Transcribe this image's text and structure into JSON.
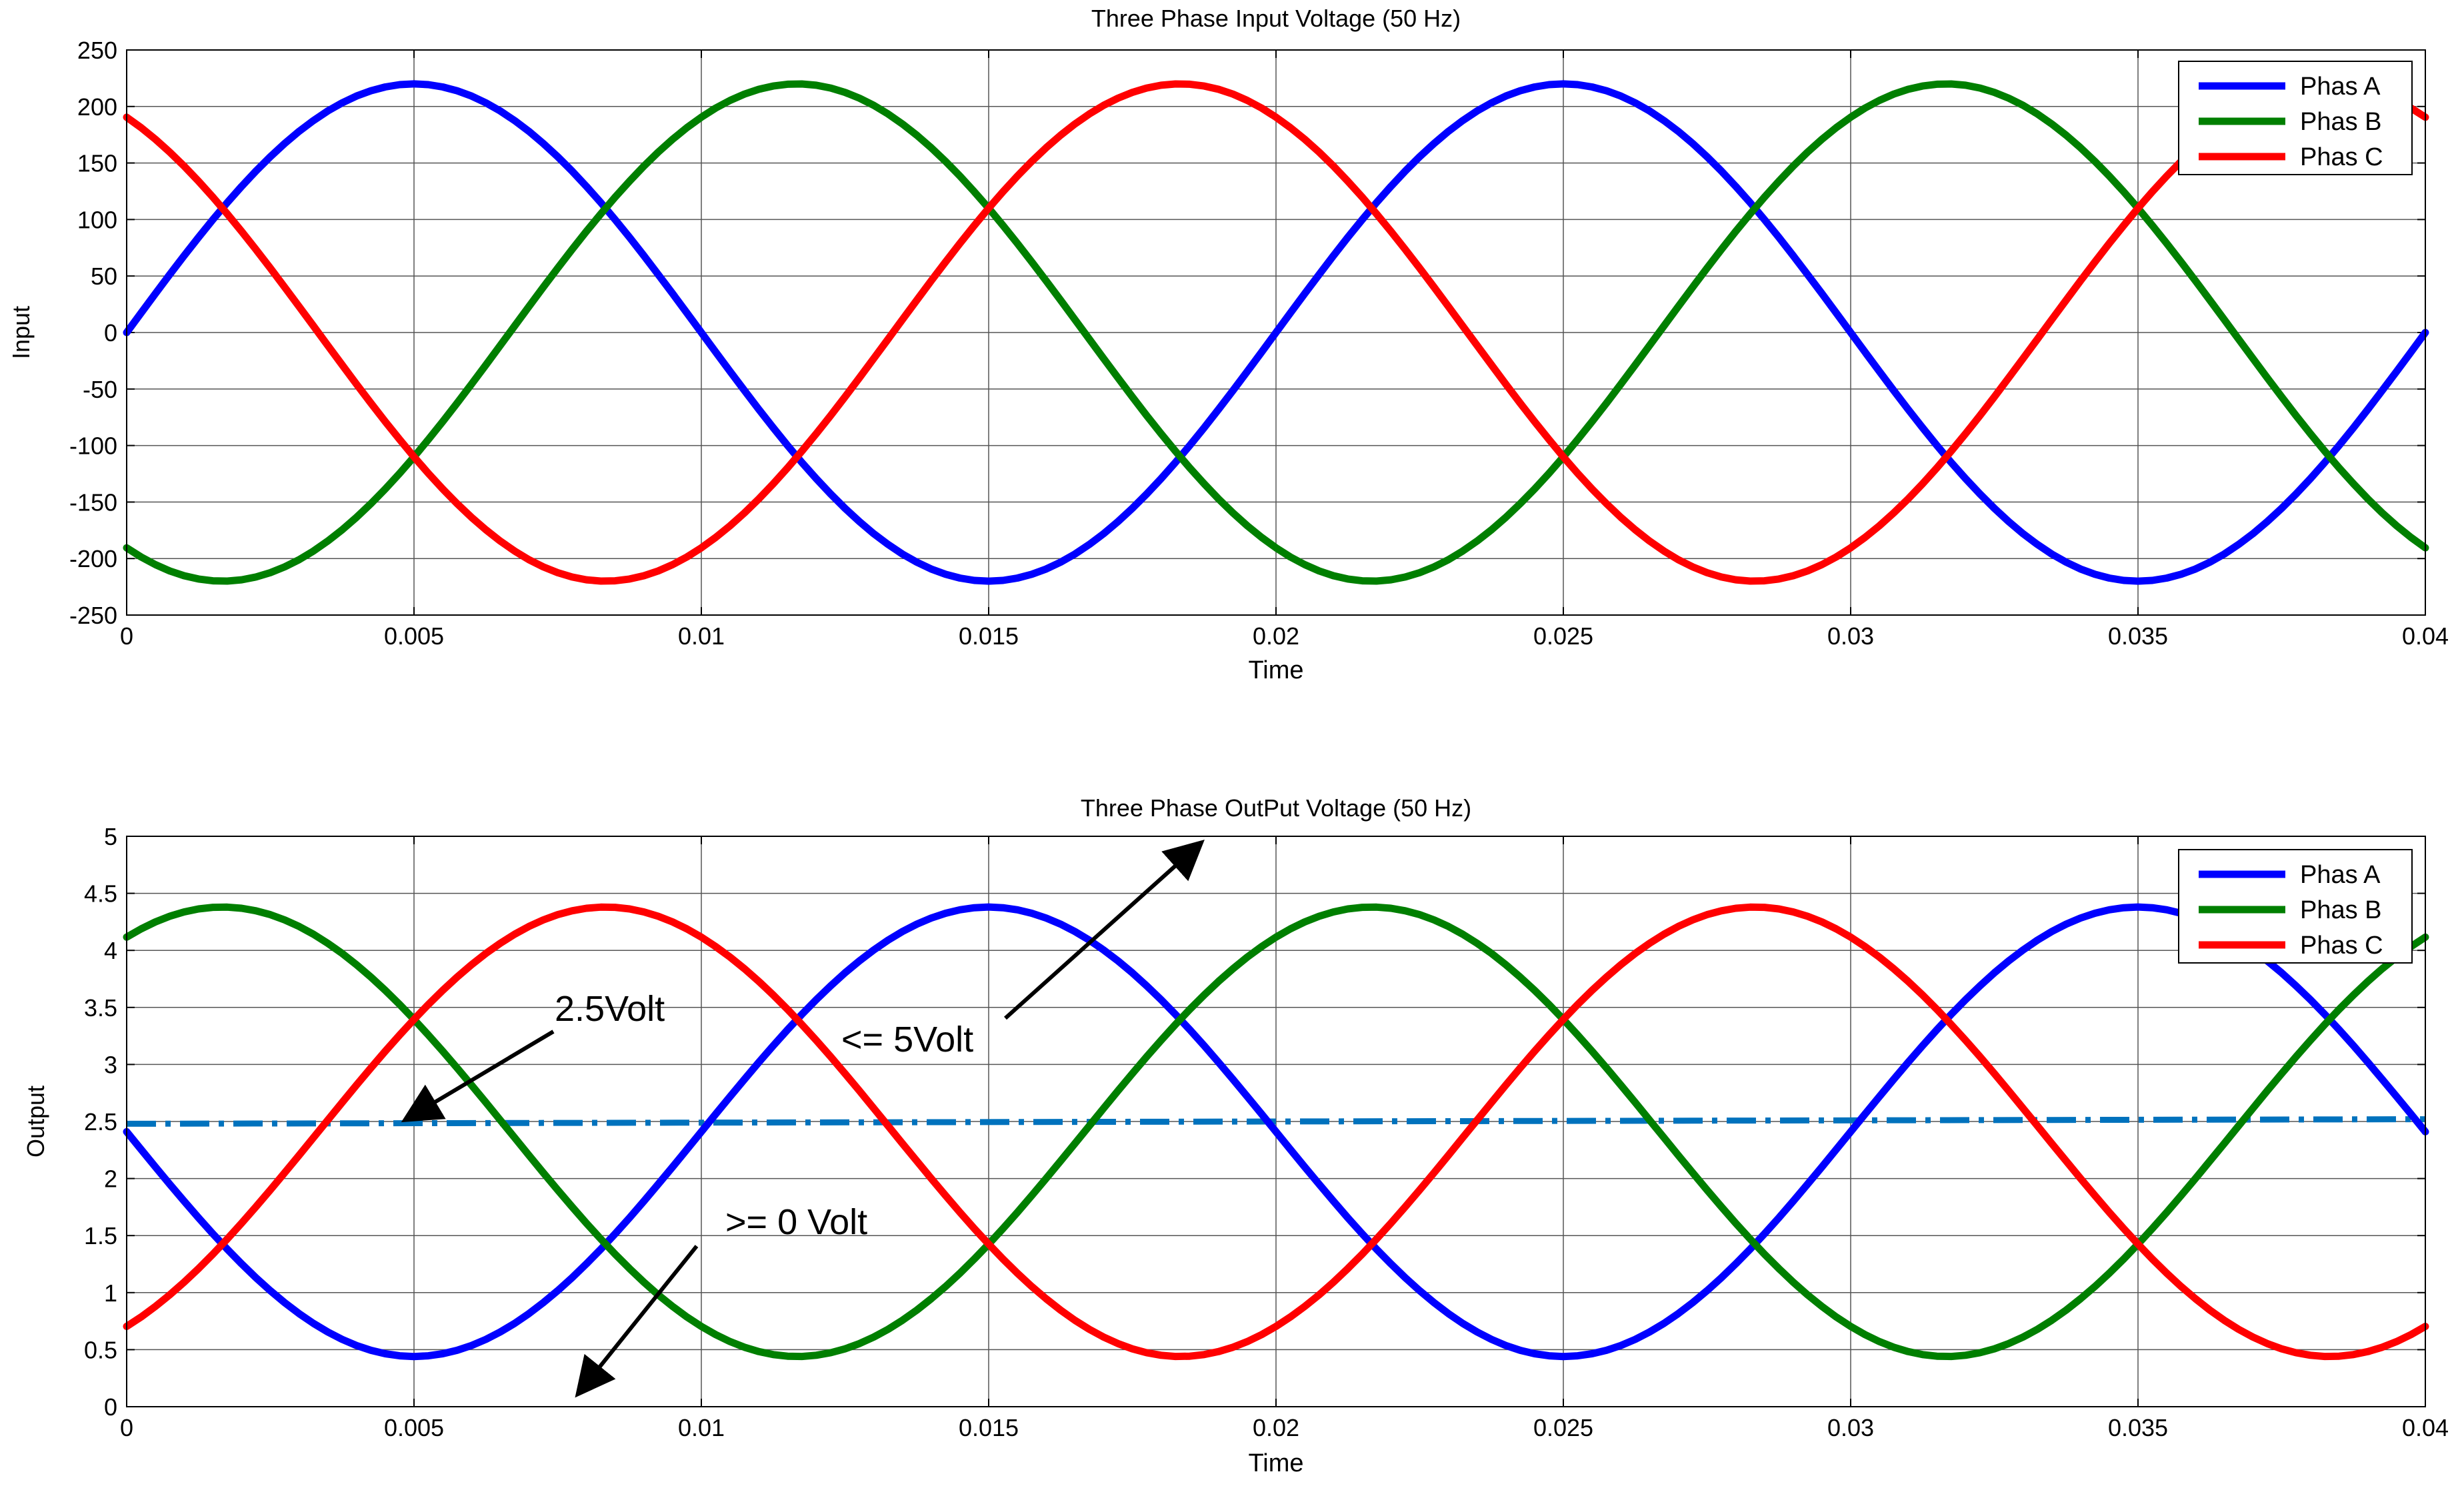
{
  "chart_data": [
    {
      "type": "line",
      "title": "Three Phase Input Voltage (50 Hz)",
      "xlabel": "Time",
      "ylabel": "Input",
      "xlim": [
        0,
        0.04
      ],
      "ylim": [
        -250,
        250
      ],
      "x_ticks": [
        "0",
        "0.005",
        "0.01",
        "0.015",
        "0.02",
        "0.025",
        "0.03",
        "0.035",
        "0.04"
      ],
      "y_ticks": [
        "250",
        "200",
        "150",
        "100",
        "50",
        "0",
        "-50",
        "-100",
        "-150",
        "-200",
        "-250"
      ],
      "grid": true,
      "legend_position": "top-right",
      "waveform": {
        "frequency_hz": 50,
        "amplitude": 220,
        "offset": 0,
        "samples": 161
      },
      "series": [
        {
          "name": "Phas A",
          "color": "#0000ff",
          "phase_deg": 0
        },
        {
          "name": "Phas B",
          "color": "#007f00",
          "phase_deg": 120
        },
        {
          "name": "Phas C",
          "color": "#ff0000",
          "phase_deg": 240
        }
      ]
    },
    {
      "type": "line",
      "title": "Three Phase OutPut Voltage (50 Hz)",
      "xlabel": "Time",
      "ylabel": "Output",
      "xlim": [
        0,
        0.04
      ],
      "ylim": [
        0,
        5
      ],
      "x_ticks": [
        "0",
        "0.005",
        "0.01",
        "0.015",
        "0.02",
        "0.025",
        "0.03",
        "0.035",
        "0.04"
      ],
      "y_ticks": [
        "5",
        "4.5",
        "4",
        "3.5",
        "3",
        "2.5",
        "2",
        "1.5",
        "1",
        "0.5",
        "0"
      ],
      "grid": true,
      "legend_position": "top-right",
      "waveform": {
        "frequency_hz": 50,
        "amplitude": -1.97,
        "offset": 2.41,
        "samples": 161
      },
      "series": [
        {
          "name": "Phas A",
          "color": "#0000ff",
          "phase_deg": 0
        },
        {
          "name": "Phas B",
          "color": "#007f00",
          "phase_deg": 120
        },
        {
          "name": "Phas C",
          "color": "#ff0000",
          "phase_deg": 240
        }
      ],
      "reference_line": {
        "y_start": 2.48,
        "y_end": 2.52,
        "color": "#0072bd",
        "style": "dash-dot"
      },
      "annotations": [
        {
          "text": "2.5Volt"
        },
        {
          "text": "<= 5Volt"
        },
        {
          "text": ">= 0 Volt"
        }
      ]
    }
  ]
}
